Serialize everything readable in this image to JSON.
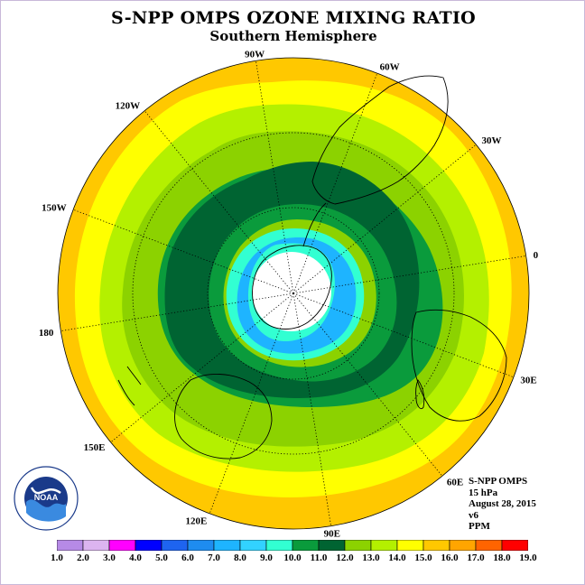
{
  "header": {
    "title": "S-NPP OMPS OZONE MIXING RATIO",
    "subtitle": "Southern Hemisphere"
  },
  "map": {
    "projection": "south-polar-stereographic",
    "longitude_labels": [
      {
        "text": "0",
        "lon": 0
      },
      {
        "text": "30E",
        "lon": 30
      },
      {
        "text": "60E",
        "lon": 60
      },
      {
        "text": "90E",
        "lon": 90
      },
      {
        "text": "120E",
        "lon": 120
      },
      {
        "text": "150E",
        "lon": 150
      },
      {
        "text": "180",
        "lon": 180
      },
      {
        "text": "150W",
        "lon": -150
      },
      {
        "text": "120W",
        "lon": -120
      },
      {
        "text": "90W",
        "lon": -90
      },
      {
        "text": "60W",
        "lon": -60
      },
      {
        "text": "30W",
        "lon": -30
      }
    ],
    "latitude_circles": [
      -30,
      -60
    ]
  },
  "info": {
    "lines": [
      "S-NPP OMPS",
      "15 hPa",
      "August 28, 2015",
      "v6",
      "PPM"
    ]
  },
  "logo": {
    "text": "NOAA",
    "icon": "noaa-logo-icon"
  },
  "colorbar": {
    "ticks": [
      "1.0",
      "2.0",
      "3.0",
      "4.0",
      "5.0",
      "6.0",
      "7.0",
      "8.0",
      "9.0",
      "10.0",
      "11.0",
      "12.0",
      "13.0",
      "14.0",
      "15.0",
      "16.0",
      "17.0",
      "18.0",
      "19.0"
    ],
    "colors": [
      "#b68ae6",
      "#dcb4f0",
      "#ff00ff",
      "#0000ff",
      "#1e64f0",
      "#1e8cf0",
      "#1eb4ff",
      "#32d2ff",
      "#32ffd2",
      "#0a9b3c",
      "#006432",
      "#8cd200",
      "#b4f000",
      "#ffff00",
      "#ffc800",
      "#ffa500",
      "#ff6400",
      "#ff0000",
      "#8c5a3c"
    ]
  },
  "colors": {
    "ocean": "#ffffff",
    "outer_band": "#ffc800",
    "polar_night": "#ffffff"
  }
}
